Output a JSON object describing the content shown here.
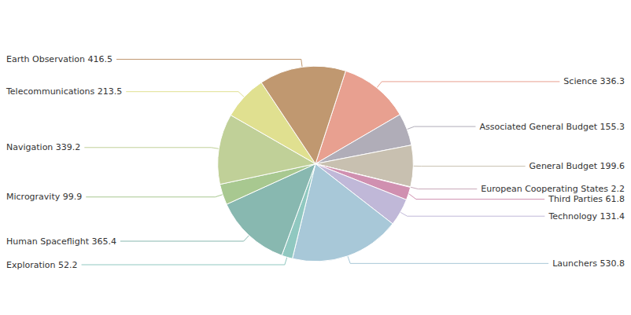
{
  "chart_data": {
    "type": "pie",
    "categories": [
      "Science 336.3",
      "Associated General Budget 155.3",
      "General Budget 199.6",
      "European Cooperating States 2.2",
      "Third Parties 61.8",
      "Technology 131.4",
      "Launchers 530.8",
      "Exploration 52.2",
      "Human Spaceflight 365.4",
      "Microgravity 99.9",
      "Navigation 339.2",
      "Telecommunications 213.5",
      "Earth Observation 416.5"
    ],
    "values": [
      336.3,
      155.3,
      199.6,
      2.2,
      61.8,
      131.4,
      530.8,
      52.2,
      365.4,
      99.9,
      339.2,
      213.5,
      416.5
    ],
    "colors": [
      "#E8A090",
      "#B0ADB8",
      "#C8C0B0",
      "#C8A8B8",
      "#D090B0",
      "#C0B8D8",
      "#A8C8D8",
      "#90C8C0",
      "#88B8B0",
      "#A8C890",
      "#C0D098",
      "#E0E090",
      "#C09870"
    ]
  }
}
